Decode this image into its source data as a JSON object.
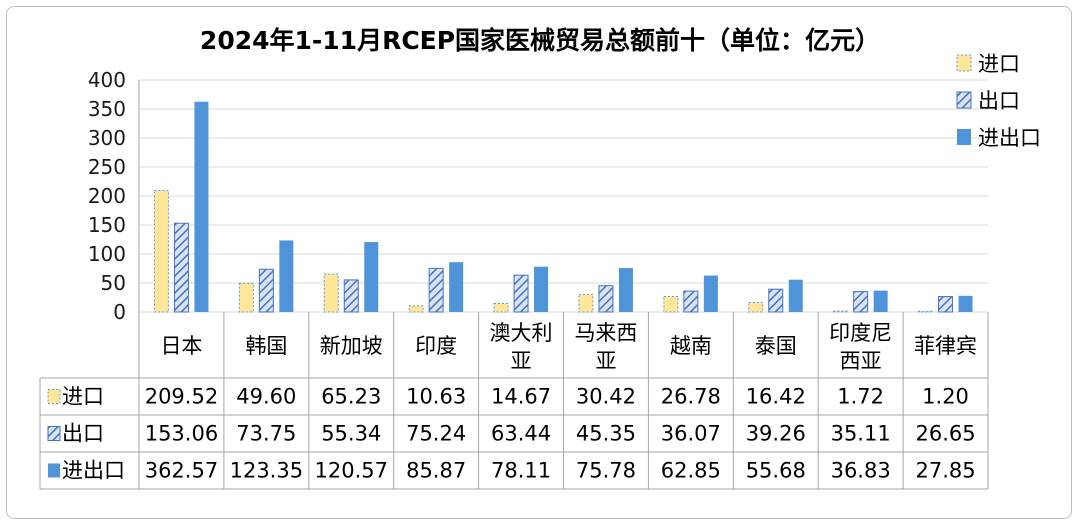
{
  "chart_data": {
    "type": "bar",
    "title": "2024年1-11月RCEP国家医械贸易总额前十（单位：亿元）",
    "categories": [
      [
        "日本"
      ],
      [
        "韩国"
      ],
      [
        "新加坡"
      ],
      [
        "印度"
      ],
      [
        "澳大利",
        "亚"
      ],
      [
        "马来西",
        "亚"
      ],
      [
        "越南"
      ],
      [
        "泰国"
      ],
      [
        "印度尼",
        "西亚"
      ],
      [
        "菲律宾"
      ]
    ],
    "series": [
      {
        "name": "进口",
        "values": [
          209.52,
          49.6,
          65.23,
          10.63,
          14.67,
          30.42,
          26.78,
          16.42,
          1.72,
          1.2
        ],
        "display": [
          "209.52",
          "49.60",
          "65.23",
          "10.63",
          "14.67",
          "30.42",
          "26.78",
          "16.42",
          "1.72",
          "1.20"
        ]
      },
      {
        "name": "出口",
        "values": [
          153.06,
          73.75,
          55.34,
          75.24,
          63.44,
          45.35,
          36.07,
          39.26,
          35.11,
          26.65
        ],
        "display": [
          "153.06",
          "73.75",
          "55.34",
          "75.24",
          "63.44",
          "45.35",
          "36.07",
          "39.26",
          "35.11",
          "26.65"
        ]
      },
      {
        "name": "进出口",
        "values": [
          362.57,
          123.35,
          120.57,
          85.87,
          78.11,
          75.78,
          62.85,
          55.68,
          36.83,
          27.85
        ],
        "display": [
          "362.57",
          "123.35",
          "120.57",
          "85.87",
          "78.11",
          "75.78",
          "62.85",
          "55.68",
          "36.83",
          "27.85"
        ]
      }
    ],
    "ylim": [
      0,
      400
    ],
    "yticks": [
      "0",
      "50",
      "100",
      "150",
      "200",
      "250",
      "300",
      "350",
      "400"
    ],
    "grid": true,
    "legend_position": "right",
    "data_table": true,
    "colors": {
      "import_fill": "#ffe699",
      "import_border": "#5b9bd5",
      "export_fill": "#dae3f3",
      "export_stripe": "#4472c4",
      "total_fill": "#4f94d9",
      "grid": "#d9d9d9"
    }
  }
}
